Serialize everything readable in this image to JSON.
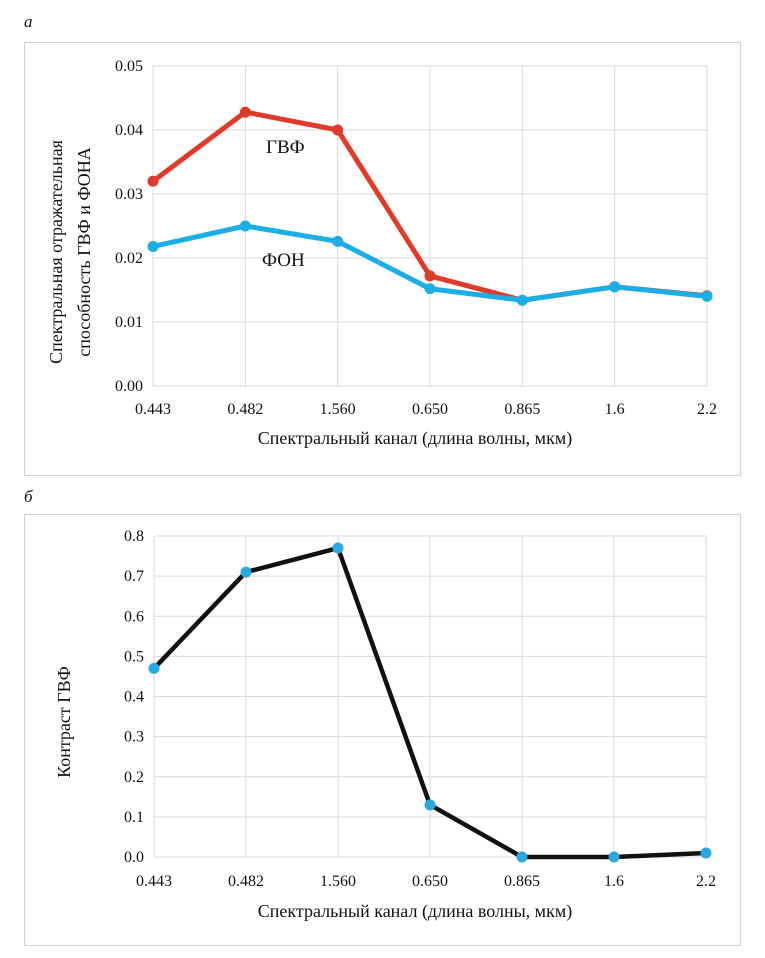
{
  "panels": {
    "a": {
      "letter": "а"
    },
    "b": {
      "letter": "б"
    }
  },
  "colors": {
    "gvf": "#e03a2a",
    "fon": "#1aaee5",
    "contrast_line": "#111111",
    "contrast_marker": "#2aa8e0",
    "grid": "#d9d9d9"
  },
  "chart_data": [
    {
      "type": "line",
      "categories": [
        "0.443",
        "0.482",
        "1.560",
        "0.650",
        "0.865",
        "1.6",
        "2.2"
      ],
      "series": [
        {
          "name": "ГВФ",
          "color": "#e03a2a",
          "values": [
            0.032,
            0.0428,
            0.04,
            0.0172,
            0.0134,
            0.0155,
            0.0141
          ]
        },
        {
          "name": "ФОН",
          "color": "#1aaee5",
          "values": [
            0.0218,
            0.025,
            0.0226,
            0.0152,
            0.0134,
            0.0155,
            0.014
          ]
        }
      ],
      "xlabel": "Спектральный канал (длина волны, мкм)",
      "ylabel": [
        "Спектральная отражательная",
        "способность ГВФ и ФОНА"
      ],
      "ylim": [
        0,
        0.05
      ],
      "yticks": [
        "0.00",
        "0.01",
        "0.02",
        "0.03",
        "0.04",
        "0.05"
      ],
      "grid": "vertical and horizontal"
    },
    {
      "type": "line",
      "categories": [
        "0.443",
        "0.482",
        "1.560",
        "0.650",
        "0.865",
        "1.6",
        "2.2"
      ],
      "series": [
        {
          "color": "#111111",
          "values": [
            0.47,
            0.71,
            0.77,
            0.13,
            0.0,
            0.0,
            0.01
          ]
        }
      ],
      "xlabel": "Спектральный канал (длина волны, мкм)",
      "ylabel": "Контраст ГВФ",
      "ylim": [
        0,
        0.8
      ],
      "yticks": [
        "0.0",
        "0.1",
        "0.2",
        "0.3",
        "0.4",
        "0.5",
        "0.6",
        "0.7",
        "0.8"
      ],
      "grid": "vertical and horizontal"
    }
  ]
}
